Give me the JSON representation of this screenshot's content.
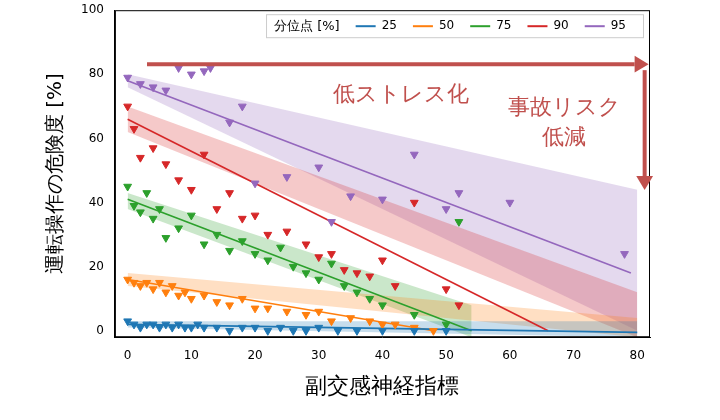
{
  "chart_data": {
    "type": "scatter",
    "x_label": "副交感神経指標",
    "y_label": "運転操作の危険度 [%]",
    "legend_title": "分位点 [%]",
    "legend": "top",
    "grid": false,
    "marker": "triangle-down",
    "xlim": [
      -2,
      82
    ],
    "ylim": [
      -2,
      100
    ],
    "xticks": [
      0,
      10,
      20,
      30,
      40,
      50,
      60,
      70,
      80
    ],
    "yticks": [
      0,
      20,
      40,
      60,
      80,
      100
    ],
    "annotations": [
      "低ストレス化",
      "事故リスク\n低減"
    ],
    "series": [
      {
        "name": "25",
        "color": "#1f77b4",
        "x": [
          0,
          1,
          2,
          3,
          4,
          5,
          6,
          7,
          8,
          9,
          10,
          11,
          12,
          14,
          16,
          18,
          20,
          22,
          24,
          26,
          28,
          30,
          33,
          36,
          40,
          45,
          50
        ],
        "values": [
          3,
          2,
          1,
          2,
          2,
          1,
          2,
          1,
          2,
          1,
          1,
          2,
          1,
          1,
          0,
          1,
          1,
          0,
          1,
          0,
          0,
          1,
          0,
          0,
          0,
          0,
          0
        ],
        "fit": {
          "x": [
            0,
            80
          ],
          "values": [
            2,
            -0.5
          ]
        },
        "band": {
          "x": [
            0,
            80
          ],
          "lower": [
            1,
            -2
          ],
          "upper": [
            3,
            3
          ]
        }
      },
      {
        "name": "50",
        "color": "#ff7f0e",
        "x": [
          0,
          1,
          2,
          3,
          4,
          5,
          6,
          7,
          8,
          9,
          10,
          12,
          14,
          16,
          18,
          20,
          22,
          25,
          28,
          30,
          32,
          35,
          38,
          40,
          42,
          45,
          48
        ],
        "values": [
          16,
          15,
          14,
          15,
          13,
          15,
          12,
          14,
          11,
          12,
          10,
          11,
          9,
          8,
          10,
          7,
          7,
          6,
          5,
          6,
          3,
          4,
          3,
          2,
          2,
          1,
          0
        ],
        "fit": {
          "x": [
            0,
            48
          ],
          "values": [
            16,
            0
          ]
        },
        "band": {
          "x": [
            0,
            80
          ],
          "lower": [
            14,
            -2
          ],
          "upper": [
            18,
            4
          ]
        }
      },
      {
        "name": "75",
        "color": "#2ca02c",
        "x": [
          0,
          1,
          2,
          3,
          4,
          5,
          6,
          8,
          10,
          12,
          14,
          16,
          18,
          20,
          22,
          24,
          26,
          28,
          30,
          32,
          34,
          36,
          38,
          40,
          45,
          50,
          52
        ],
        "values": [
          45,
          39,
          37,
          43,
          35,
          38,
          29,
          32,
          36,
          27,
          30,
          25,
          28,
          24,
          22,
          26,
          20,
          18,
          16,
          21,
          14,
          12,
          10,
          8,
          5,
          2,
          34
        ],
        "fit": {
          "x": [
            0,
            54
          ],
          "values": [
            41,
            0
          ]
        },
        "band": {
          "x": [
            0,
            54
          ],
          "lower": [
            38,
            -2
          ],
          "upper": [
            43,
            8
          ]
        }
      },
      {
        "name": "90",
        "color": "#d62728",
        "x": [
          0,
          1,
          2,
          4,
          6,
          8,
          10,
          12,
          14,
          16,
          18,
          20,
          22,
          25,
          28,
          30,
          32,
          34,
          36,
          38,
          40,
          42,
          45,
          50,
          52
        ],
        "values": [
          70,
          63,
          54,
          57,
          52,
          47,
          44,
          55,
          38,
          43,
          35,
          36,
          30,
          31,
          27,
          23,
          24,
          19,
          18,
          17,
          22,
          14,
          40,
          13,
          8
        ],
        "fit": {
          "x": [
            0,
            66
          ],
          "values": [
            66,
            0
          ]
        },
        "band": {
          "x": [
            0,
            80
          ],
          "lower": [
            62,
            -2
          ],
          "upper": [
            70,
            12
          ]
        }
      },
      {
        "name": "95",
        "color": "#9467bd",
        "x": [
          0,
          2,
          4,
          6,
          8,
          10,
          12,
          13,
          16,
          18,
          20,
          25,
          30,
          32,
          35,
          40,
          45,
          50,
          52,
          60,
          78
        ],
        "values": [
          79,
          77,
          76,
          75,
          82,
          80,
          81,
          82,
          65,
          70,
          46,
          48,
          51,
          34,
          42,
          41,
          55,
          38,
          43,
          40,
          24
        ],
        "fit": {
          "x": [
            0,
            79
          ],
          "values": [
            78,
            18
          ]
        },
        "band": {
          "x": [
            0,
            80
          ],
          "lower": [
            76,
            0
          ],
          "upper": [
            80,
            44
          ]
        }
      }
    ]
  }
}
